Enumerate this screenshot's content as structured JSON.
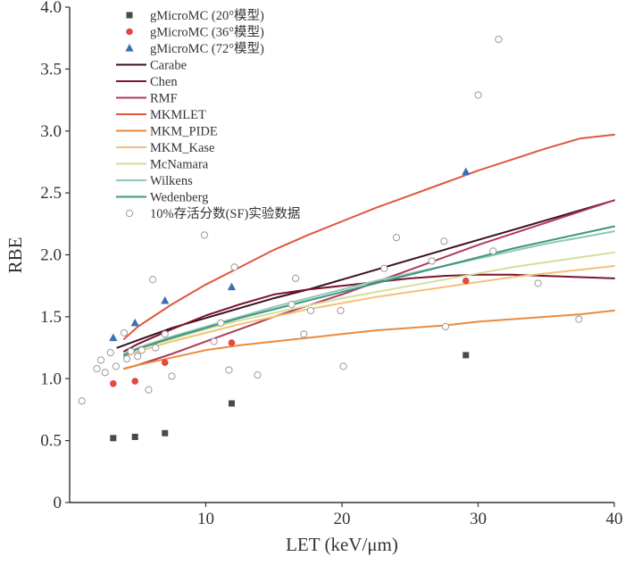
{
  "chart_data": {
    "type": "scatter",
    "xlabel": "LET (keV/μm)",
    "ylabel": "RBE",
    "xlim": [
      0,
      40
    ],
    "ylim": [
      0,
      4.0
    ],
    "x_ticks": [
      "10",
      "20",
      "30",
      "40"
    ],
    "y_ticks": [
      "0",
      "0.5",
      "1.0",
      "1.5",
      "2.0",
      "2.5",
      "3.0",
      "3.5",
      "4.0"
    ],
    "grid": false,
    "legend_position": "top-left",
    "scatter_series": [
      {
        "name": "gMicroMC (20°模型)",
        "marker": "square",
        "color": "#4a4a4a",
        "points": [
          {
            "x": 3.2,
            "y": 0.52
          },
          {
            "x": 4.8,
            "y": 0.53
          },
          {
            "x": 7.0,
            "y": 0.56
          },
          {
            "x": 11.9,
            "y": 0.8
          },
          {
            "x": 29.1,
            "y": 1.19
          }
        ]
      },
      {
        "name": "gMicroMC (36°模型)",
        "marker": "circle",
        "color": "#e04a3f",
        "points": [
          {
            "x": 3.2,
            "y": 0.96
          },
          {
            "x": 4.8,
            "y": 0.98
          },
          {
            "x": 7.0,
            "y": 1.13
          },
          {
            "x": 11.9,
            "y": 1.29
          },
          {
            "x": 29.1,
            "y": 1.79
          }
        ]
      },
      {
        "name": "gMicroMC (72°模型)",
        "marker": "triangle",
        "color": "#3a6fb3",
        "points": [
          {
            "x": 3.2,
            "y": 1.33
          },
          {
            "x": 4.8,
            "y": 1.45
          },
          {
            "x": 7.0,
            "y": 1.63
          },
          {
            "x": 11.9,
            "y": 1.74
          },
          {
            "x": 29.1,
            "y": 2.67
          }
        ]
      },
      {
        "name": "10%存活分数(SF)实验数据",
        "marker": "open-circle",
        "color": "#9a9a9a",
        "points": [
          {
            "x": 0.9,
            "y": 0.82
          },
          {
            "x": 2.0,
            "y": 1.08
          },
          {
            "x": 2.3,
            "y": 1.15
          },
          {
            "x": 2.6,
            "y": 1.05
          },
          {
            "x": 3.0,
            "y": 1.21
          },
          {
            "x": 3.4,
            "y": 1.1
          },
          {
            "x": 4.0,
            "y": 1.37
          },
          {
            "x": 4.2,
            "y": 1.16
          },
          {
            "x": 4.5,
            "y": 1.22
          },
          {
            "x": 5.0,
            "y": 1.18
          },
          {
            "x": 5.3,
            "y": 1.23
          },
          {
            "x": 5.8,
            "y": 0.91
          },
          {
            "x": 6.1,
            "y": 1.8
          },
          {
            "x": 6.3,
            "y": 1.25
          },
          {
            "x": 7.0,
            "y": 1.36
          },
          {
            "x": 7.5,
            "y": 1.02
          },
          {
            "x": 9.9,
            "y": 2.16
          },
          {
            "x": 10.6,
            "y": 1.3
          },
          {
            "x": 11.1,
            "y": 1.45
          },
          {
            "x": 11.7,
            "y": 1.07
          },
          {
            "x": 12.1,
            "y": 1.9
          },
          {
            "x": 13.8,
            "y": 1.03
          },
          {
            "x": 16.3,
            "y": 1.6
          },
          {
            "x": 16.6,
            "y": 1.81
          },
          {
            "x": 17.2,
            "y": 1.36
          },
          {
            "x": 17.7,
            "y": 1.55
          },
          {
            "x": 19.9,
            "y": 1.55
          },
          {
            "x": 20.1,
            "y": 1.1
          },
          {
            "x": 23.1,
            "y": 1.89
          },
          {
            "x": 24.0,
            "y": 2.14
          },
          {
            "x": 26.6,
            "y": 1.95
          },
          {
            "x": 27.5,
            "y": 2.11
          },
          {
            "x": 27.6,
            "y": 1.42
          },
          {
            "x": 30.0,
            "y": 3.29
          },
          {
            "x": 31.1,
            "y": 2.03
          },
          {
            "x": 31.5,
            "y": 3.74
          },
          {
            "x": 34.4,
            "y": 1.77
          },
          {
            "x": 37.4,
            "y": 1.48
          }
        ]
      }
    ],
    "line_series": [
      {
        "name": "Carabe",
        "color": "#3b1020",
        "x": [
          3.5,
          5,
          7.5,
          10,
          12.5,
          15,
          17.5,
          20,
          22.5,
          25,
          27.5,
          30,
          32.5,
          35,
          37.5,
          40
        ],
        "y": [
          1.25,
          1.31,
          1.41,
          1.49,
          1.57,
          1.65,
          1.72,
          1.8,
          1.88,
          1.96,
          2.04,
          2.12,
          2.2,
          2.28,
          2.36,
          2.44
        ]
      },
      {
        "name": "Chen",
        "color": "#7a1530",
        "x": [
          4,
          5,
          7.5,
          10,
          12.5,
          15,
          17.5,
          20,
          22.5,
          25,
          27.5,
          30,
          32.5,
          35,
          37.5,
          40
        ],
        "y": [
          1.22,
          1.28,
          1.4,
          1.51,
          1.6,
          1.68,
          1.72,
          1.75,
          1.78,
          1.81,
          1.83,
          1.84,
          1.84,
          1.83,
          1.82,
          1.81
        ]
      },
      {
        "name": "RMF",
        "color": "#b03a5a",
        "x": [
          4,
          5,
          7.5,
          10,
          12.5,
          15,
          17.5,
          20,
          22.5,
          25,
          27.5,
          30,
          32.5,
          35,
          37.5,
          40
        ],
        "y": [
          1.08,
          1.11,
          1.2,
          1.3,
          1.4,
          1.5,
          1.59,
          1.68,
          1.78,
          1.88,
          1.98,
          2.08,
          2.17,
          2.26,
          2.35,
          2.44
        ]
      },
      {
        "name": "MKMLET",
        "color": "#e0573e",
        "x": [
          4,
          5,
          7.5,
          10,
          12.5,
          15,
          17.5,
          20,
          22.5,
          25,
          27.5,
          30,
          32.5,
          35,
          37.5,
          40
        ],
        "y": [
          1.32,
          1.42,
          1.6,
          1.76,
          1.9,
          2.04,
          2.16,
          2.27,
          2.38,
          2.48,
          2.58,
          2.68,
          2.77,
          2.86,
          2.94,
          2.97
        ]
      },
      {
        "name": "MKM_PIDE",
        "color": "#ea8a3c",
        "x": [
          4,
          5,
          7.5,
          10,
          12.5,
          15,
          17.5,
          20,
          22.5,
          25,
          27.5,
          30,
          32.5,
          35,
          37.5,
          40
        ],
        "y": [
          1.08,
          1.11,
          1.17,
          1.23,
          1.27,
          1.3,
          1.33,
          1.36,
          1.39,
          1.41,
          1.43,
          1.46,
          1.48,
          1.5,
          1.52,
          1.55
        ]
      },
      {
        "name": "MKM_Kase",
        "color": "#f2c178",
        "x": [
          4,
          5,
          7.5,
          10,
          12.5,
          15,
          17.5,
          20,
          22.5,
          25,
          27.5,
          30,
          32.5,
          35,
          37.5,
          40
        ],
        "y": [
          1.18,
          1.22,
          1.3,
          1.37,
          1.44,
          1.5,
          1.56,
          1.61,
          1.66,
          1.7,
          1.74,
          1.78,
          1.82,
          1.85,
          1.88,
          1.91
        ]
      },
      {
        "name": "McNamara",
        "color": "#d7dd9c",
        "x": [
          4,
          5,
          7.5,
          10,
          12.5,
          15,
          17.5,
          20,
          22.5,
          25,
          27.5,
          30,
          32.5,
          35,
          37.5,
          40
        ],
        "y": [
          1.2,
          1.24,
          1.32,
          1.4,
          1.47,
          1.53,
          1.59,
          1.65,
          1.7,
          1.75,
          1.8,
          1.85,
          1.9,
          1.94,
          1.98,
          2.02
        ]
      },
      {
        "name": "Wilkens",
        "color": "#8fc8b0",
        "x": [
          4,
          5,
          7.5,
          10,
          12.5,
          15,
          17.5,
          20,
          22.5,
          25,
          27.5,
          30,
          32.5,
          35,
          37.5,
          40
        ],
        "y": [
          1.2,
          1.25,
          1.34,
          1.42,
          1.5,
          1.58,
          1.65,
          1.72,
          1.79,
          1.85,
          1.91,
          1.97,
          2.03,
          2.09,
          2.14,
          2.19
        ]
      },
      {
        "name": "Wedenberg",
        "color": "#3e9484",
        "x": [
          4,
          5,
          7.5,
          10,
          12.5,
          15,
          17.5,
          20,
          22.5,
          25,
          27.5,
          30,
          32.5,
          35,
          37.5,
          40
        ],
        "y": [
          1.19,
          1.24,
          1.33,
          1.41,
          1.49,
          1.56,
          1.63,
          1.7,
          1.77,
          1.84,
          1.91,
          1.98,
          2.05,
          2.11,
          2.17,
          2.23
        ]
      }
    ],
    "legend_order": [
      "gMicroMC (20°模型)",
      "gMicroMC (36°模型)",
      "gMicroMC (72°模型)",
      "Carabe",
      "Chen",
      "RMF",
      "MKMLET",
      "MKM_PIDE",
      "MKM_Kase",
      "McNamara",
      "Wilkens",
      "Wedenberg",
      "10%存活分数(SF)实验数据"
    ]
  }
}
